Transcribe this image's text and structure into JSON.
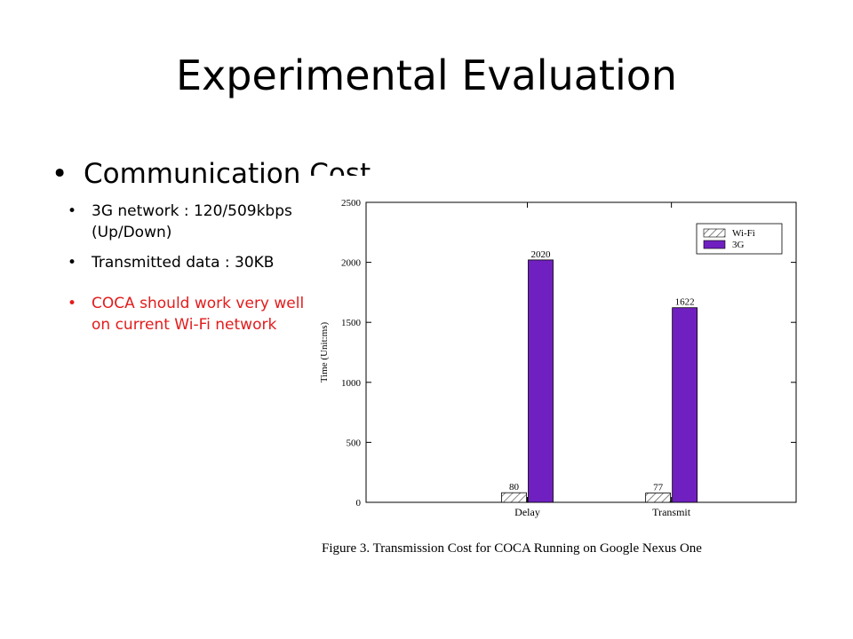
{
  "slide": {
    "title": "Experimental Evaluation",
    "main_bullet": "Communication Cost",
    "sub_bullets": [
      "3G network : 120/509kbps (Up/Down)",
      "Transmitted data : 30KB"
    ],
    "highlight_bullet": "COCA should work very well on current Wi-Fi network",
    "highlight_color": "#e31b1b"
  },
  "chart_data": {
    "type": "bar",
    "categories": [
      "Delay",
      "Transmit"
    ],
    "series": [
      {
        "name": "Wi-Fi",
        "values": [
          80,
          77
        ],
        "pattern": "hatched"
      },
      {
        "name": "3G",
        "values": [
          2020,
          1622
        ],
        "color": "#7020c0"
      }
    ],
    "ylabel": "Time (Unit:ms)",
    "ylim": [
      0,
      2500
    ],
    "yticks": [
      0,
      500,
      1000,
      1500,
      2000,
      2500
    ],
    "legend_position": "top-right",
    "grid": false,
    "caption": "Figure 3.    Transmission Cost for COCA Running on Google Nexus One"
  }
}
